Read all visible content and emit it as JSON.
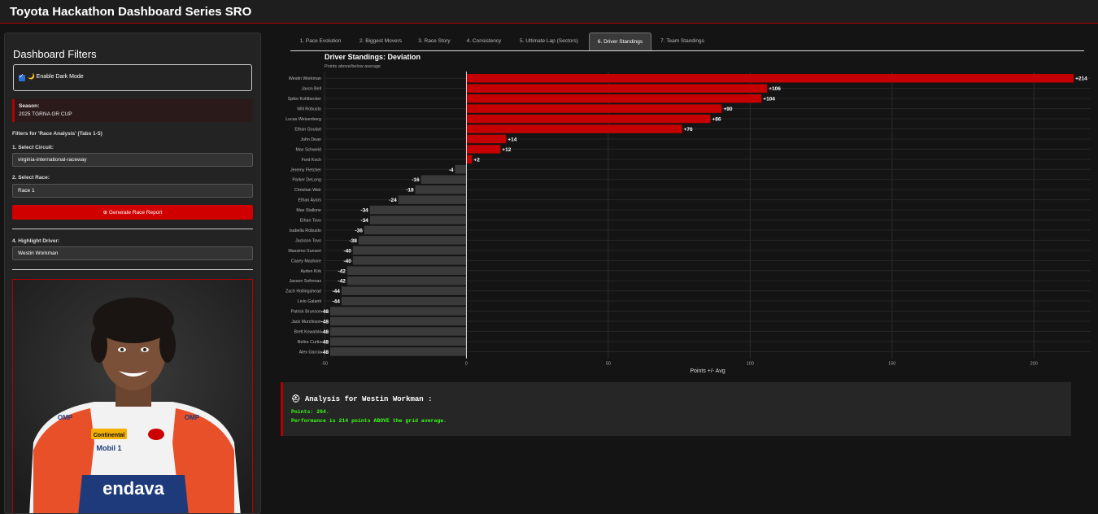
{
  "app": {
    "title": "Toyota Hackathon Dashboard Series SRO"
  },
  "sidebar": {
    "heading": "Dashboard Filters",
    "dark_mode_label": "🌙 Enable Dark Mode",
    "dark_mode_checked": true,
    "season_label": "Season:",
    "season_value": "2025 TGRNA GR CUP",
    "filters_heading": "Filters for 'Race Analysis' (Tabs 1-5)",
    "circuit_label": "1. Select Circuit:",
    "circuit_value": "virginia-international-raceway",
    "race_label": "2. Select Race:",
    "race_value": "Race 1",
    "generate_button": "⊕ Generate Race Report",
    "highlight_label": "4. Highlight Driver:",
    "highlight_value": "Westin Workman",
    "photo_sponsors": [
      "Continental",
      "Mobil 1",
      "OMP",
      "endava"
    ]
  },
  "tabs": [
    {
      "label": "1. Pace Evolution"
    },
    {
      "label": "2. Biggest Movers"
    },
    {
      "label": "3. Race Story"
    },
    {
      "label": "4. Consistency"
    },
    {
      "label": "5. Ultimate Lap (Sectors)"
    },
    {
      "label": "6. Driver Standings",
      "active": true
    },
    {
      "label": "7. Team Standings"
    }
  ],
  "chart_data": {
    "type": "bar",
    "orientation": "horizontal",
    "title": "Driver Standings: Deviation",
    "subtitle": "Points above/below average",
    "xlabel": "Points +/- Avg",
    "ylabel": "",
    "xlim": [
      -50,
      220
    ],
    "xticks": [
      -50,
      0,
      50,
      100,
      150,
      200
    ],
    "grid": true,
    "colors": {
      "positive": "#c40000",
      "negative": "#3a3a3a",
      "highlight": "#c40000"
    },
    "categories": [
      "Westin Workman",
      "Jaxon Bell",
      "Spike Kohlbecker",
      "Will Robusto",
      "Lucas Weisenberg",
      "Ethan Goulart",
      "John Dean",
      "Max Schweid",
      "Ford Koch",
      "Jeremy Fletcher",
      "Parker DeLong",
      "Christian Weir",
      "Ethan Ayars",
      "Max Stallone",
      "Ethan Tovo",
      "Isabella Robusto",
      "Jackson Tovo",
      "Massimo Sunseri",
      "Casey Mashore",
      "Ayden Kirk",
      "Jaxson Sofronas",
      "Zach Hollingshead",
      "Livio Galanti",
      "Patrick Brunson",
      "Jack Murchison",
      "Brett Kowalski",
      "Beltre Curtis",
      "Alex Garcia"
    ],
    "values": [
      214,
      106,
      104,
      90,
      86,
      76,
      14,
      12,
      2,
      -4,
      -16,
      -18,
      -24,
      -34,
      -34,
      -36,
      -38,
      -40,
      -40,
      -42,
      -42,
      -44,
      -44,
      -48,
      -48,
      -48,
      -48,
      -48
    ],
    "labels": [
      "+214",
      "+106",
      "+104",
      "+90",
      "+86",
      "+76",
      "+14",
      "+12",
      "+2",
      "-4",
      "-16",
      "-18",
      "-24",
      "-34",
      "-34",
      "-36",
      "-38",
      "-40",
      "-40",
      "-42",
      "-42",
      "-44",
      "-44",
      "-48",
      "-48",
      "-48",
      "-48",
      "-48"
    ]
  },
  "analysis": {
    "title": "Analysis for Westin Workman :",
    "icon": "helmet-icon",
    "line1": "Points: 264.",
    "line2": "Performance is 214 points ABOVE the grid average."
  }
}
